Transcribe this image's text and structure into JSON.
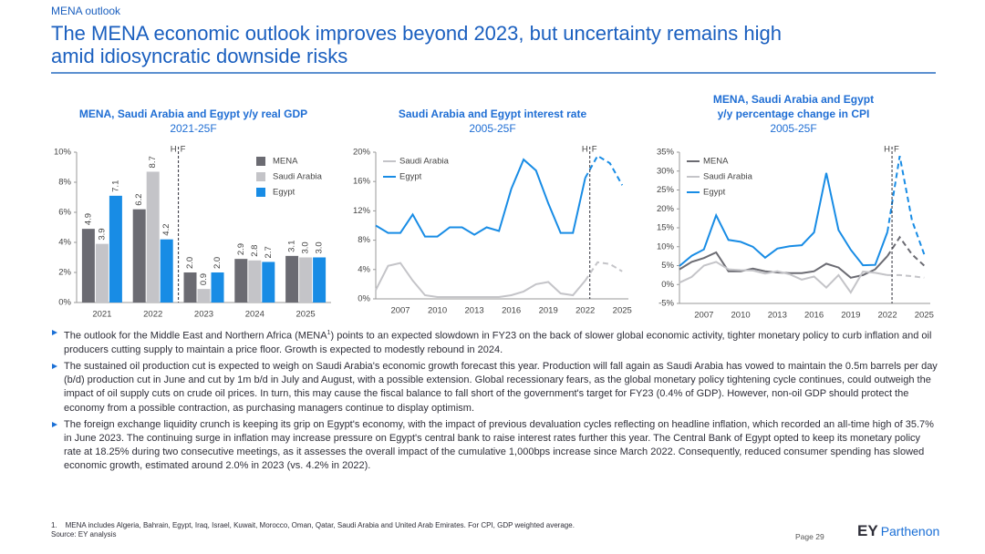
{
  "header": {
    "section": "MENA outlook",
    "title": [
      "The MENA economic outlook improves beyond 2023, but uncertainty remains high",
      "amid idiosyncratic downside risks"
    ]
  },
  "chart_data": [
    {
      "type": "bar",
      "title": [
        "MENA, Saudi Arabia and Egypt y/y real GDP"
      ],
      "subtitle": "2021-25F",
      "categories": [
        "2021",
        "2022",
        "2023",
        "2024",
        "2025"
      ],
      "series": [
        {
          "name": "MENA",
          "color": "#6b6b72",
          "values": [
            4.9,
            6.2,
            2.0,
            2.9,
            3.1
          ],
          "value_labels": [
            "4.9",
            "6.2",
            "2.0",
            "2.9",
            "3.1"
          ]
        },
        {
          "name": "Saudi Arabia",
          "color": "#c4c4c8",
          "values": [
            3.9,
            8.7,
            0.9,
            2.8,
            3.0
          ],
          "value_labels": [
            "3.9",
            "8.7",
            "0.9",
            "2.8",
            "3.0"
          ]
        },
        {
          "name": "Egypt",
          "color": "#188ce5",
          "values": [
            7.1,
            4.2,
            2.0,
            2.7,
            3.0
          ],
          "value_labels": [
            "7.1",
            "4.2",
            "2.0",
            "2.7",
            "3.0"
          ]
        }
      ],
      "ylim": [
        0,
        10
      ],
      "yticks": [
        {
          "value": 0,
          "label": "0%"
        },
        {
          "value": 2,
          "label": "2%"
        },
        {
          "value": 4,
          "label": "4%"
        },
        {
          "value": 6,
          "label": "6%"
        },
        {
          "value": 8,
          "label": "8%"
        },
        {
          "value": 10,
          "label": "10%"
        }
      ],
      "forecast_start": "2023",
      "annotations": [
        "H",
        "F"
      ],
      "legend": "upper right",
      "grid": false
    },
    {
      "type": "line",
      "title": [
        "Saudi Arabia and Egypt interest rate"
      ],
      "subtitle": "2005-25F",
      "x": [
        2005,
        2006,
        2007,
        2008,
        2009,
        2010,
        2011,
        2012,
        2013,
        2014,
        2015,
        2016,
        2017,
        2018,
        2019,
        2020,
        2021,
        2022,
        2023,
        2024,
        2025
      ],
      "series": [
        {
          "name": "Saudi Arabia",
          "color": "#c4c4c8",
          "values": [
            1.2,
            4.5,
            4.9,
            2.5,
            0.5,
            0.25,
            0.25,
            0.25,
            0.25,
            0.25,
            0.25,
            0.5,
            1.0,
            2.0,
            2.3,
            0.75,
            0.5,
            2.5,
            5.0,
            4.75,
            3.75
          ]
        },
        {
          "name": "Egypt",
          "color": "#188ce5",
          "values": [
            10,
            9,
            9,
            11.5,
            8.5,
            8.5,
            9.75,
            9.75,
            8.75,
            9.75,
            9.25,
            15,
            19,
            17.5,
            13,
            9,
            9,
            16.5,
            19.5,
            18.5,
            15.5
          ]
        }
      ],
      "xlim": [
        2005,
        2025.5
      ],
      "xticks": [
        2007,
        2010,
        2013,
        2016,
        2019,
        2022,
        2025
      ],
      "ylim": [
        0,
        20
      ],
      "yticks": [
        {
          "value": 0,
          "label": "0%"
        },
        {
          "value": 4,
          "label": "4%"
        },
        {
          "value": 8,
          "label": "8%"
        },
        {
          "value": 12,
          "label": "12%"
        },
        {
          "value": 16,
          "label": "16%"
        },
        {
          "value": 20,
          "label": "20%"
        }
      ],
      "forecast_start": 2022,
      "annotations": [
        "H",
        "F"
      ],
      "legend": "upper left",
      "grid": false
    },
    {
      "type": "line",
      "title": [
        "MENA, Saudi Arabia and Egypt",
        "y/y percentage change in CPI"
      ],
      "subtitle": "2005-25F",
      "x": [
        2005,
        2006,
        2007,
        2008,
        2009,
        2010,
        2011,
        2012,
        2013,
        2014,
        2015,
        2016,
        2017,
        2018,
        2019,
        2020,
        2021,
        2022,
        2023,
        2024,
        2025
      ],
      "series": [
        {
          "name": "MENA",
          "color": "#6b6b72",
          "values": [
            4,
            6,
            7,
            8.5,
            3.5,
            3.5,
            4.2,
            3.5,
            3.2,
            3,
            3,
            3.5,
            5.5,
            4.5,
            1.8,
            2.5,
            4,
            7.5,
            12.5,
            8,
            5
          ]
        },
        {
          "name": "Saudi Arabia",
          "color": "#c4c4c8",
          "values": [
            0.5,
            2,
            5,
            6,
            4,
            3.8,
            3.7,
            2.9,
            3.5,
            2.7,
            1.3,
            2.1,
            -0.8,
            2.5,
            -2.1,
            3.4,
            3.1,
            2.5,
            2.5,
            2.2,
            1.8
          ]
        },
        {
          "name": "Egypt",
          "color": "#188ce5",
          "values": [
            4.9,
            7.6,
            9.3,
            18.3,
            11.8,
            11.3,
            10,
            7.1,
            9.5,
            10.1,
            10.4,
            13.8,
            29.5,
            14.4,
            9.2,
            5.1,
            5.2,
            13.9,
            34,
            17,
            8
          ]
        }
      ],
      "xlim": [
        2005,
        2025.5
      ],
      "xticks": [
        2007,
        2010,
        2013,
        2016,
        2019,
        2022,
        2025
      ],
      "ylim": [
        -5,
        35
      ],
      "yticks": [
        {
          "value": -5,
          "label": "-5%"
        },
        {
          "value": 0,
          "label": "0%"
        },
        {
          "value": 5,
          "label": "5%"
        },
        {
          "value": 10,
          "label": "10%"
        },
        {
          "value": 15,
          "label": "15%"
        },
        {
          "value": 20,
          "label": "20%"
        },
        {
          "value": 25,
          "label": "25%"
        },
        {
          "value": 30,
          "label": "30%"
        },
        {
          "value": 35,
          "label": "35%"
        }
      ],
      "forecast_start": 2022,
      "annotations": [
        "H",
        "F"
      ],
      "legend": "upper left",
      "grid": false
    }
  ],
  "bullets": [
    {
      "before": "The outlook for the Middle East and Northern Africa (MENA",
      "sup": "1",
      "after": ") points to an expected slowdown in FY23 on the back of slower global economic activity, tighter monetary policy to curb inflation and oil producers cutting supply to maintain a price floor. Growth is expected to modestly rebound in 2024."
    },
    "The sustained oil production cut is expected to weigh on Saudi Arabia's economic growth forecast this year. Production will fall again as Saudi Arabia has vowed to maintain the 0.5m barrels per day (b/d) production cut in June and cut by 1m b/d in July and August, with a possible extension. Global recessionary fears, as the global monetary policy tightening cycle continues, could outweigh the impact of oil supply cuts on crude oil prices. In turn, this may cause the fiscal balance to fall short of the government's target for FY23 (0.4% of GDP). However, non-oil GDP should protect the economy from a possible contraction, as purchasing managers continue to display optimism.",
    "The foreign exchange liquidity crunch is keeping its grip on Egypt's economy, with the impact of previous devaluation cycles reflecting on headline inflation, which recorded an all-time high of 35.7% in June 2023. The continuing surge in inflation may increase pressure on Egypt's central bank to raise interest rates further this year. The Central Bank of Egypt opted to keep its monetary policy rate at 18.25% during two consecutive meetings, as it assesses the overall impact of the cumulative 1,000bps increase since March 2022. Consequently, reduced consumer spending has slowed economic growth, estimated around 2.0% in 2023 (vs. 4.2% in 2022)."
  ],
  "footnote": {
    "number": "1.",
    "text": "MENA includes Algeria, Bahrain, Egypt, Iraq, Israel, Kuwait, Morocco, Oman, Qatar, Saudi Arabia and United Arab Emirates. For CPI, GDP weighted average."
  },
  "source": "Source: EY analysis",
  "page": "Page 29",
  "logo": {
    "mark": "EY",
    "name": "Parthenon"
  }
}
